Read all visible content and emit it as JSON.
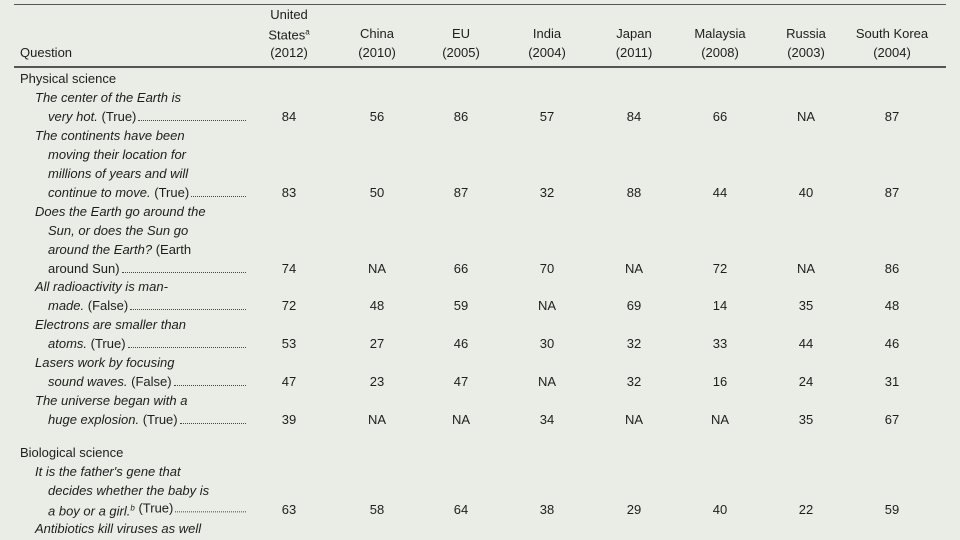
{
  "header": {
    "question": "Question",
    "countries": [
      {
        "name_lines": [
          "United",
          "States"
        ],
        "note": "a",
        "year": "(2012)"
      },
      {
        "name_lines": [
          "China"
        ],
        "year": "(2010)"
      },
      {
        "name_lines": [
          "EU"
        ],
        "year": "(2005)"
      },
      {
        "name_lines": [
          "India"
        ],
        "year": "(2004)"
      },
      {
        "name_lines": [
          "Japan"
        ],
        "year": "(2011)"
      },
      {
        "name_lines": [
          "Malaysia"
        ],
        "year": "(2008)"
      },
      {
        "name_lines": [
          "Russia"
        ],
        "year": "(2003)"
      },
      {
        "name_lines": [
          "South Korea"
        ],
        "year": "(2004)"
      }
    ]
  },
  "sections": [
    {
      "title": "Physical science",
      "items": [
        {
          "lines": [
            "The center of the Earth is",
            "very hot."
          ],
          "answer": "(True)",
          "values": [
            84,
            56,
            86,
            57,
            84,
            66,
            "NA",
            87
          ]
        },
        {
          "lines": [
            "The continents have been",
            "moving their location for",
            "millions of years and will",
            "continue to move."
          ],
          "answer": "(True)",
          "values": [
            83,
            50,
            87,
            32,
            88,
            44,
            40,
            87
          ]
        },
        {
          "lines": [
            "Does the Earth go around the",
            "Sun, or does the Sun go",
            "around the Earth?"
          ],
          "answer_lines": [
            "(Earth",
            "around Sun)"
          ],
          "values": [
            74,
            "NA",
            66,
            70,
            "NA",
            72,
            "NA",
            86
          ]
        },
        {
          "lines": [
            "All radioactivity is man-",
            "made."
          ],
          "answer": "(False)",
          "values": [
            72,
            48,
            59,
            "NA",
            69,
            14,
            35,
            48
          ]
        },
        {
          "lines": [
            "Electrons are smaller than",
            "atoms."
          ],
          "answer": "(True)",
          "values": [
            53,
            27,
            46,
            30,
            32,
            33,
            44,
            46
          ]
        },
        {
          "lines": [
            "Lasers work by focusing",
            "sound waves."
          ],
          "answer": "(False)",
          "values": [
            47,
            23,
            47,
            "NA",
            32,
            16,
            24,
            31
          ]
        },
        {
          "lines": [
            "The universe began with a",
            "huge explosion."
          ],
          "answer": "(True)",
          "values": [
            39,
            "NA",
            "NA",
            34,
            "NA",
            "NA",
            35,
            67
          ]
        }
      ]
    },
    {
      "title": "Biological science",
      "items": [
        {
          "lines": [
            "It is the father's gene that",
            "decides whether the baby is",
            "a boy or a girl."
          ],
          "note": "b",
          "answer": "(True)",
          "values": [
            63,
            58,
            64,
            38,
            29,
            40,
            22,
            59
          ]
        },
        {
          "lines": [
            "Antibiotics kill viruses as well"
          ]
        }
      ]
    }
  ]
}
